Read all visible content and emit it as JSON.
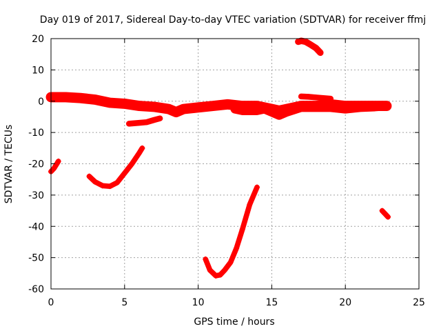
{
  "chart_data": {
    "type": "scatter",
    "title": "Day 019 of 2017, Sidereal Day-to-day VTEC variation (SDTVAR) for receiver ffmj",
    "xlabel": "GPS time / hours",
    "ylabel": "SDTVAR / TECUs",
    "xlim": [
      0,
      25
    ],
    "ylim": [
      -60,
      20
    ],
    "xticks": [
      0,
      5,
      10,
      15,
      20,
      25
    ],
    "yticks": [
      -60,
      -50,
      -40,
      -30,
      -20,
      -10,
      0,
      10,
      20
    ],
    "grid": true,
    "marker": "plus",
    "color": "#ff0000",
    "series": [
      {
        "name": "band-main",
        "band": 1.2,
        "x": [
          0,
          1,
          2,
          3,
          4,
          5,
          6,
          7,
          8,
          8.5,
          9,
          10,
          11,
          12,
          13,
          14,
          15,
          15.5,
          16,
          17,
          18,
          19,
          20,
          21,
          22,
          22.8
        ],
        "y": [
          1.3,
          1.3,
          1.0,
          0.5,
          -0.5,
          -0.8,
          -1.5,
          -1.8,
          -2.5,
          -3.5,
          -2.5,
          -2.0,
          -1.5,
          -1.0,
          -1.5,
          -1.5,
          -2.5,
          -3.0,
          -2.5,
          -1.5,
          -1.5,
          -1.0,
          -1.5,
          -1.5,
          -1.5,
          -1.5
        ]
      },
      {
        "name": "band-lower",
        "band": 1.0,
        "x": [
          12.5,
          13,
          14,
          14.5,
          15,
          15.5,
          16,
          17,
          18,
          19,
          20,
          21,
          22,
          22.8
        ],
        "y": [
          -2.5,
          -3.0,
          -3.0,
          -2.5,
          -3.5,
          -4.5,
          -3.5,
          -2.0,
          -2.0,
          -2.0,
          -2.5,
          -2.0,
          -1.8,
          -1.5
        ]
      },
      {
        "name": "arc-upper",
        "band": 0.6,
        "x": [
          16.8,
          17.0,
          17.3,
          17.6,
          18.0,
          18.3
        ],
        "y": [
          19.0,
          19.3,
          19.0,
          18.2,
          17.0,
          15.5
        ]
      },
      {
        "name": "plateau-17-19",
        "band": 0.5,
        "x": [
          17.0,
          17.5,
          18.0,
          18.5,
          19.0
        ],
        "y": [
          1.5,
          1.4,
          1.2,
          1.0,
          0.8
        ]
      },
      {
        "name": "segment-6-7",
        "band": 0.5,
        "x": [
          5.3,
          6.0,
          6.5,
          7.0,
          7.4
        ],
        "y": [
          -7.2,
          -6.9,
          -6.7,
          -6.0,
          -5.5
        ]
      },
      {
        "name": "short-start",
        "band": 0.4,
        "x": [
          0.0,
          0.2,
          0.4,
          0.5
        ],
        "y": [
          -22.5,
          -21.5,
          -20.0,
          -19.2
        ]
      },
      {
        "name": "dip-3",
        "band": 0.4,
        "x": [
          2.6,
          3.0,
          3.5,
          4.0,
          4.5,
          5.0,
          5.5,
          6.0,
          6.2
        ],
        "y": [
          -24.0,
          -25.8,
          -27.0,
          -27.2,
          -26.0,
          -23.0,
          -20.0,
          -16.5,
          -15.0
        ]
      },
      {
        "name": "dip-11",
        "band": 0.4,
        "x": [
          10.5,
          10.8,
          11.2,
          11.5,
          11.8,
          12.2,
          12.6,
          13.0,
          13.5,
          14.0
        ],
        "y": [
          -50.5,
          -54.0,
          -55.8,
          -55.5,
          -54.0,
          -51.5,
          -47.0,
          -41.0,
          -33.0,
          -27.5
        ]
      },
      {
        "name": "end-segment",
        "band": 0.4,
        "x": [
          22.5,
          22.7,
          22.9
        ],
        "y": [
          -35.0,
          -36.0,
          -37.0
        ]
      }
    ]
  }
}
